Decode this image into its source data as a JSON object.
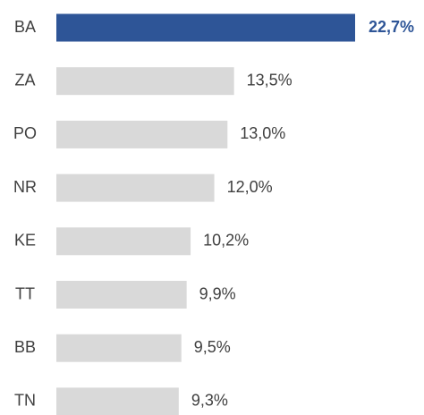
{
  "chart_data": {
    "type": "bar",
    "orientation": "horizontal",
    "categories": [
      "BA",
      "ZA",
      "PO",
      "NR",
      "KE",
      "TT",
      "BB",
      "TN"
    ],
    "values": [
      22.7,
      13.5,
      13.0,
      12.0,
      10.2,
      9.9,
      9.5,
      9.3
    ],
    "value_labels": [
      "22,7%",
      "13,5%",
      "13,0%",
      "12,0%",
      "10,2%",
      "9,9%",
      "9,5%",
      "9,3%"
    ],
    "colors": [
      "#2e5597",
      "#d9d9d9",
      "#d9d9d9",
      "#d9d9d9",
      "#d9d9d9",
      "#d9d9d9",
      "#d9d9d9",
      "#d9d9d9"
    ],
    "highlight_color": "#2e5597"
  }
}
